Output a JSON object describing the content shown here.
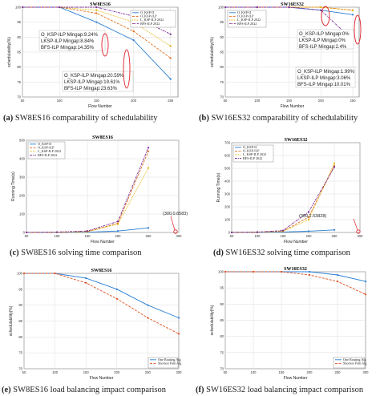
{
  "captions": [
    {
      "letter": "(a)",
      "text": " SW8ES16 comparability of schedulability"
    },
    {
      "letter": "(b)",
      "text": " SW16ES32 comparability of schedulability"
    },
    {
      "letter": "(c)",
      "text": " SW8ES16 solving time comparison"
    },
    {
      "letter": "(d)",
      "text": " SW16ES32 solving time comparison"
    },
    {
      "letter": "(e)",
      "text": " SW8ES16 load balancing impact comparison"
    },
    {
      "letter": "(f)",
      "text": " SW16ES32 load balancing impact comparison"
    }
  ],
  "chart_data": [
    {
      "id": "a",
      "type": "line",
      "title": "SW8ES16",
      "xlabel": "Flow Number",
      "ylabel": "schedulability(%)",
      "xlim": [
        50,
        260
      ],
      "ylim": [
        70,
        100
      ],
      "xticks": [
        50,
        100,
        150,
        200,
        250
      ],
      "yticks": [
        70,
        75,
        80,
        85,
        90,
        95,
        100
      ],
      "grid": true,
      "legend_position": "top-right",
      "x": [
        50,
        100,
        150,
        200,
        250
      ],
      "series": [
        {
          "name": "O_KSP-II",
          "color": "#2a7fd4",
          "dash": "",
          "values": [
            100,
            100,
            95,
            89,
            76
          ]
        },
        {
          "name": "O_KSP-ILP",
          "color": "#e07020",
          "dash": "3,1.5",
          "values": [
            100,
            100,
            98,
            92,
            83
          ]
        },
        {
          "name": "L_KSP-ILP 2022",
          "color": "#e0b000",
          "dash": "1,1",
          "values": [
            100,
            100,
            99,
            95,
            87
          ]
        },
        {
          "name": "BFS-ILP 2022",
          "color": "#7b2c96",
          "dash": "3,1,1,1",
          "values": [
            100,
            100,
            100,
            97,
            91
          ]
        }
      ],
      "annotations": [
        [
          "O_KSP-ILP Mingap:9.24%",
          "LKSP-ILP Mingap:8.84%",
          "BFS-ILP Mingap:14.35%"
        ],
        [
          "O_KSP-ILP Mingap:20.59%",
          "LKSP-ILP Mingap:19.61%",
          "BFS-ILP Mingap:23.63%"
        ]
      ]
    },
    {
      "id": "b",
      "type": "line",
      "title": "SW16ES32",
      "xlabel": "Flow Number",
      "ylabel": "schedulability(%)",
      "xlim": [
        50,
        260
      ],
      "ylim": [
        70,
        100
      ],
      "xticks": [
        50,
        100,
        150,
        200,
        250
      ],
      "yticks": [
        70,
        75,
        80,
        85,
        90,
        95,
        100
      ],
      "grid": true,
      "legend_position": "top-left",
      "x": [
        50,
        100,
        150,
        200,
        250
      ],
      "series": [
        {
          "name": "O_KSP-II",
          "color": "#2a7fd4",
          "dash": "",
          "values": [
            100,
            100,
            100,
            99,
            97.5
          ]
        },
        {
          "name": "O_KSP-ILP",
          "color": "#e07020",
          "dash": "3,1.5",
          "values": [
            100,
            100,
            100,
            100,
            99
          ]
        },
        {
          "name": "L_KSP-ILP 2022",
          "color": "#e0b000",
          "dash": "1,1",
          "values": [
            100,
            100,
            100,
            100,
            99
          ]
        },
        {
          "name": "BFS-ILP 2022",
          "color": "#7b2c96",
          "dash": "3,1,1,1",
          "values": [
            100,
            100,
            100,
            99,
            89
          ]
        }
      ],
      "annotations": [
        [
          "O_KSP-ILP Mingap:0%",
          "LKSP-ILP Mingap:0%",
          "BFS-ILP Mingap:2.4%"
        ],
        [
          "O_KSP-ILP Mingap:1.99%",
          "LKSP-ILP Mingap:3.06%",
          "BFS-ILP Mingap:10.01%"
        ]
      ]
    },
    {
      "id": "c",
      "type": "line",
      "title": "SW8ES16",
      "xlabel": "Flow Number",
      "ylabel": "Running Time(s)",
      "xlim": [
        50,
        300
      ],
      "ylim": [
        0,
        500
      ],
      "xticks": [
        50,
        100,
        150,
        200,
        250,
        300
      ],
      "yticks": [
        0,
        100,
        200,
        300,
        400,
        500
      ],
      "grid": true,
      "legend_position": "top-left",
      "x": [
        50,
        100,
        150,
        200,
        250
      ],
      "series": [
        {
          "name": "O_KSP-II",
          "color": "#2a7fd4",
          "dash": "",
          "values": [
            0.2,
            0.5,
            1.5,
            8,
            25
          ]
        },
        {
          "name": "O_KSP-ILP",
          "color": "#e07020",
          "dash": "3,1.5",
          "values": [
            0.3,
            1,
            5,
            50,
            440
          ]
        },
        {
          "name": "L_KSP-ILP 2022",
          "color": "#e0b000",
          "dash": "1,1",
          "values": [
            0.3,
            1,
            4,
            45,
            350
          ]
        },
        {
          "name": "BFS-ILP 2022",
          "color": "#7b2c96",
          "dash": "3,1,1,1",
          "values": [
            0.5,
            2,
            8,
            60,
            460
          ]
        }
      ],
      "point_label": "(300,0.6583)"
    },
    {
      "id": "d",
      "type": "line",
      "title": "SW16ES32",
      "xlabel": "Flow Number",
      "ylabel": "Running Time(s)",
      "xlim": [
        50,
        300
      ],
      "ylim": [
        0,
        700
      ],
      "xticks": [
        50,
        100,
        150,
        200,
        250,
        300
      ],
      "yticks": [
        0,
        100,
        200,
        300,
        400,
        500,
        600,
        700
      ],
      "grid": true,
      "legend_position": "top-left",
      "x": [
        50,
        100,
        150,
        200,
        250
      ],
      "series": [
        {
          "name": "O_KSP-II",
          "color": "#2a7fd4",
          "dash": "",
          "values": [
            0.3,
            1,
            3,
            10,
            20
          ]
        },
        {
          "name": "O_KSP-ILP",
          "color": "#e07020",
          "dash": "3,1.5",
          "values": [
            0.5,
            2,
            10,
            120,
            520
          ]
        },
        {
          "name": "L_KSP-ILP 2022",
          "color": "#e0b000",
          "dash": "1,1",
          "values": [
            0.5,
            2,
            8,
            100,
            540
          ]
        },
        {
          "name": "BFS-ILP 2022",
          "color": "#7b2c96",
          "dash": "3,1,1,1",
          "values": [
            1,
            3,
            15,
            160,
            510
          ]
        }
      ],
      "point_label": "(300,1.53828)"
    },
    {
      "id": "e",
      "type": "line",
      "title": "SW8ES16",
      "xlabel": "Flow Number",
      "ylabel": "schedulability(%)",
      "xlim": [
        50,
        300
      ],
      "ylim": [
        70,
        100
      ],
      "xticks": [
        50,
        100,
        150,
        200,
        250,
        300
      ],
      "yticks": [
        70,
        75,
        80,
        85,
        90,
        95,
        100
      ],
      "grid": true,
      "legend_position": "bottom-right",
      "x": [
        50,
        100,
        150,
        200,
        250,
        300
      ],
      "series": [
        {
          "name": "One Routing Alg",
          "color": "#2a7fd4",
          "dash": "",
          "values": [
            100,
            100,
            98.5,
            95,
            90,
            86
          ]
        },
        {
          "name": "Shortest Path Alg",
          "color": "#e05020",
          "dash": "3,1.5",
          "values": [
            100,
            100,
            97,
            92,
            86,
            81
          ]
        }
      ]
    },
    {
      "id": "f",
      "type": "line",
      "title": "SW16ES32",
      "xlabel": "Flow Number",
      "ylabel": "schedulability(%)",
      "xlim": [
        50,
        300
      ],
      "ylim": [
        70,
        100
      ],
      "xticks": [
        50,
        100,
        150,
        200,
        250,
        300
      ],
      "yticks": [
        70,
        75,
        80,
        85,
        90,
        95,
        100
      ],
      "grid": true,
      "legend_position": "bottom-right",
      "x": [
        50,
        100,
        150,
        200,
        250,
        300
      ],
      "series": [
        {
          "name": "One Routing Alg",
          "color": "#2a7fd4",
          "dash": "",
          "values": [
            100,
            100,
            100,
            100,
            99,
            97
          ]
        },
        {
          "name": "Shortest Path Alg",
          "color": "#e05020",
          "dash": "3,1.5",
          "values": [
            100,
            100,
            100,
            99,
            97,
            93
          ]
        }
      ]
    }
  ]
}
